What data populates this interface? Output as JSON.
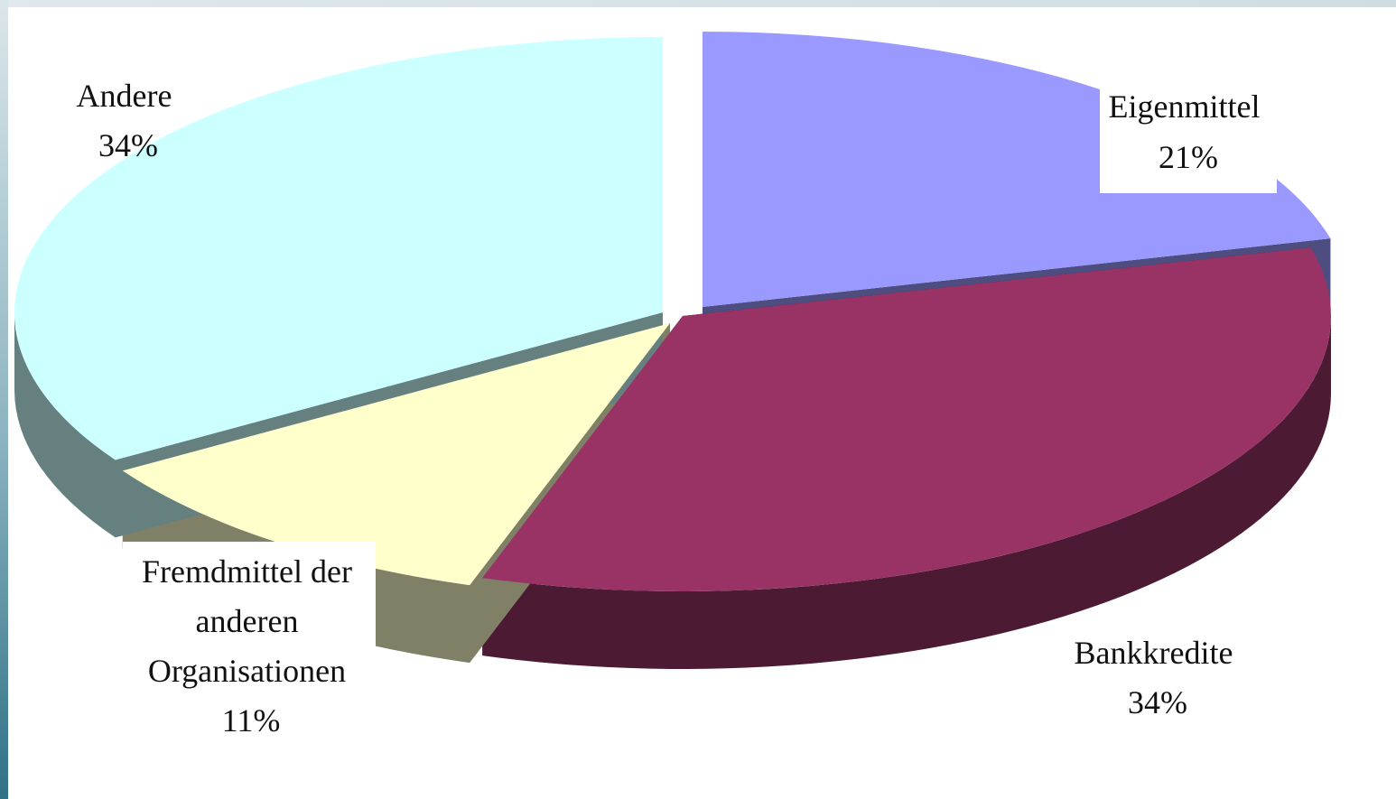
{
  "chart_data": {
    "type": "pie",
    "style": "3d-exploded",
    "slices": [
      {
        "label_lines": [
          "Eigenmittel"
        ],
        "percent_text": "21%",
        "value": 21,
        "color": "#9999ff",
        "side_color": "#4d4d80"
      },
      {
        "label_lines": [
          "Bankkredite"
        ],
        "percent_text": "34%",
        "value": 34,
        "color": "#993366",
        "side_color": "#4d1a33"
      },
      {
        "label_lines": [
          "Fremdmittel der",
          "anderen",
          "Organisationen"
        ],
        "percent_text": "11%",
        "value": 11,
        "color": "#ffffcc",
        "side_color": "#808066"
      },
      {
        "label_lines": [
          "Andere"
        ],
        "percent_text": "34%",
        "value": 34,
        "color": "#ccffff",
        "side_color": "#668080"
      }
    ],
    "legend": "none"
  }
}
